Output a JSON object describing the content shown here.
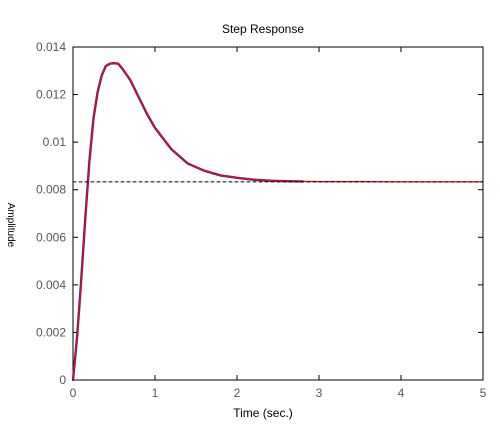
{
  "chart_data": {
    "type": "line",
    "title": "Step Response",
    "xlabel": "Time (sec.)",
    "ylabel": "Amplitude",
    "xlim": [
      0,
      5
    ],
    "ylim": [
      0,
      0.014
    ],
    "xticks": [
      0,
      1,
      2,
      3,
      4,
      5
    ],
    "xtick_labels": [
      "0",
      "1",
      "2",
      "3",
      "4",
      "5"
    ],
    "yticks": [
      0,
      0.002,
      0.004,
      0.006,
      0.008,
      0.01,
      0.012,
      0.014
    ],
    "ytick_labels": [
      "0",
      "0.002",
      "0.004",
      "0.006",
      "0.008",
      "0.01",
      "0.012",
      "0.014"
    ],
    "grid": false,
    "legend": "none",
    "colors": {
      "series_1": "#3030a0",
      "series_2": "#ff0000",
      "reference": "#000000",
      "axes": "#000000",
      "tick_label": "#555555"
    },
    "series": [
      {
        "style": "solid",
        "x": [
          0,
          0.05,
          0.1,
          0.15,
          0.2,
          0.25,
          0.3,
          0.35,
          0.4,
          0.45,
          0.5,
          0.55,
          0.6,
          0.7,
          0.8,
          0.9,
          1.0,
          1.2,
          1.4,
          1.6,
          1.8,
          2.0,
          2.2,
          2.4,
          2.6,
          2.8
        ],
        "y": [
          0,
          0.0018,
          0.0042,
          0.0068,
          0.0092,
          0.011,
          0.0121,
          0.0128,
          0.0132,
          0.0133,
          0.01332,
          0.0133,
          0.0131,
          0.0126,
          0.0119,
          0.0112,
          0.0106,
          0.0097,
          0.0091,
          0.0088,
          0.0086,
          0.0085,
          0.00842,
          0.00838,
          0.00836,
          0.00835
        ]
      },
      {
        "style": "solid",
        "x": [
          0,
          0.05,
          0.1,
          0.15,
          0.2,
          0.25,
          0.3,
          0.35,
          0.4,
          0.45,
          0.5,
          0.55,
          0.6,
          0.7,
          0.8,
          0.9,
          1.0,
          1.2,
          1.4,
          1.6,
          1.8,
          2.0,
          2.2,
          2.4,
          2.6,
          2.8,
          3.0,
          3.5,
          4.0,
          4.5,
          5.0
        ],
        "y": [
          0,
          0.0017,
          0.0041,
          0.0067,
          0.0091,
          0.0109,
          0.0121,
          0.0128,
          0.0132,
          0.0133,
          0.01332,
          0.0133,
          0.0131,
          0.0126,
          0.0119,
          0.0112,
          0.0106,
          0.0097,
          0.0091,
          0.0088,
          0.0086,
          0.0085,
          0.00842,
          0.00838,
          0.00836,
          0.00835,
          0.00834,
          0.00834,
          0.00833,
          0.00833,
          0.00833
        ]
      },
      {
        "style": "dashed",
        "x": [
          0,
          5
        ],
        "y": [
          0.00833,
          0.00833
        ]
      }
    ]
  }
}
